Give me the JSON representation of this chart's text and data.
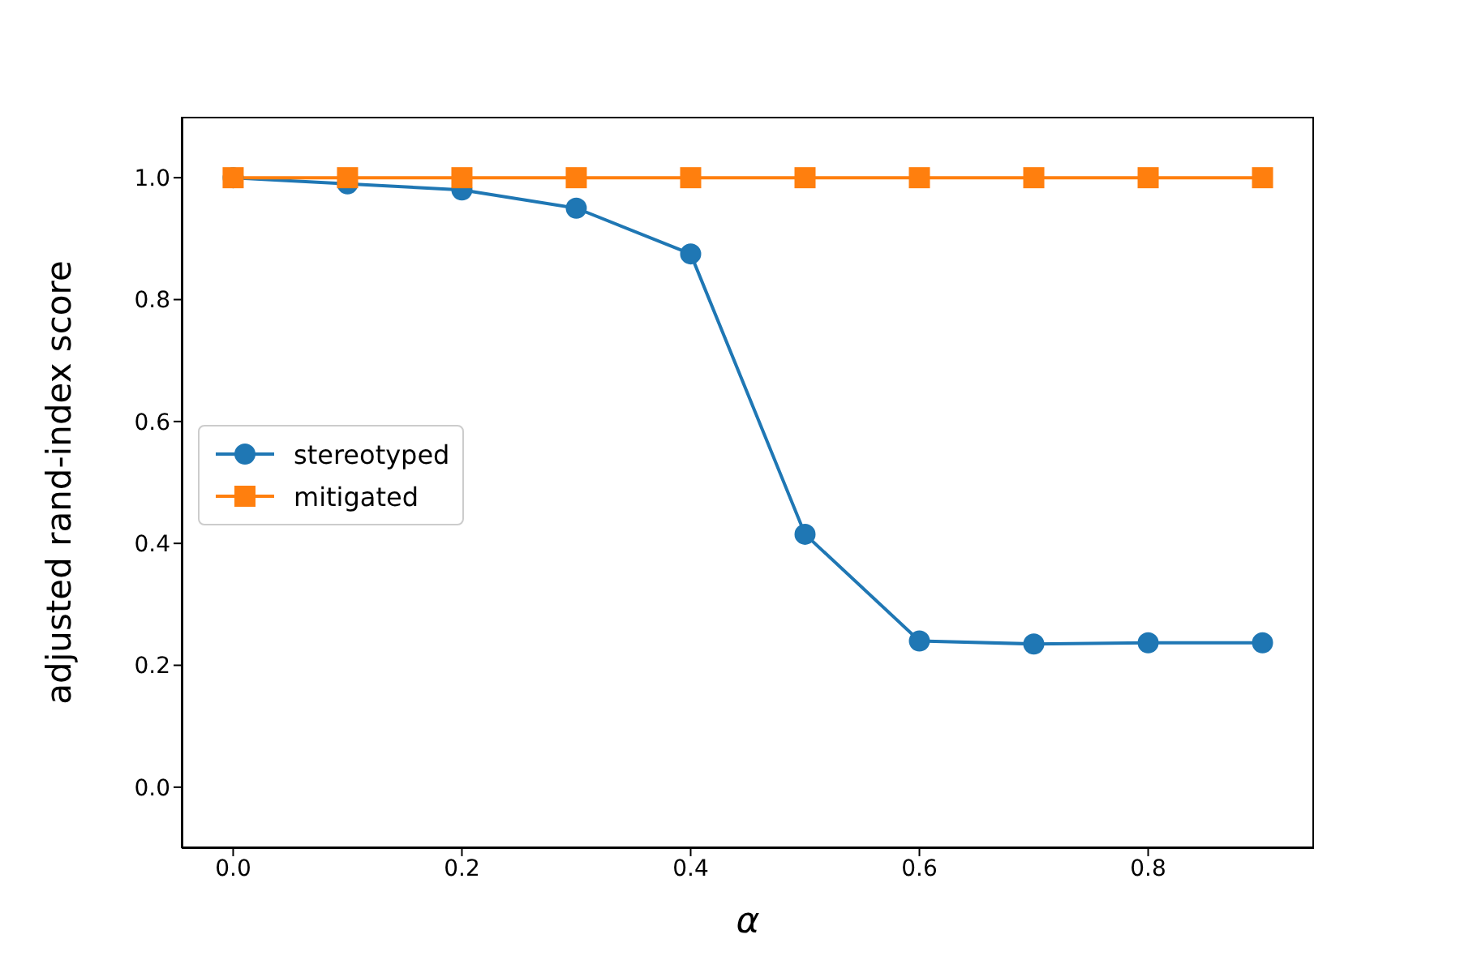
{
  "chart_data": {
    "type": "line",
    "xlabel": "α",
    "ylabel": "adjusted rand-index score",
    "x": [
      0,
      0.1,
      0.2,
      0.3,
      0.4,
      0.5,
      0.6,
      0.7,
      0.8,
      0.9
    ],
    "series": [
      {
        "name": "stereotyped",
        "color": "#1f77b4",
        "marker": "circle",
        "values": [
          1.0,
          0.99,
          0.98,
          0.95,
          0.875,
          0.415,
          0.24,
          0.235,
          0.237,
          0.237
        ]
      },
      {
        "name": "mitigated",
        "color": "#ff7f0e",
        "marker": "square",
        "values": [
          1.0,
          1.0,
          1.0,
          1.0,
          1.0,
          1.0,
          1.0,
          1.0,
          1.0,
          1.0
        ]
      }
    ],
    "xlim": [
      -0.045,
      0.945
    ],
    "xticks": [
      {
        "value": 0,
        "label": "0.0"
      },
      0.2,
      0.4,
      0.6,
      0.8
    ],
    "ylim": [
      -0.1,
      1.1
    ],
    "yticks": [
      {
        "value": 0,
        "label": "0.0"
      },
      0.2,
      0.4,
      0.6,
      0.8,
      {
        "value": 1,
        "label": "1.0"
      }
    ],
    "grid": false,
    "legend": "center left",
    "line_style": "solid"
  }
}
